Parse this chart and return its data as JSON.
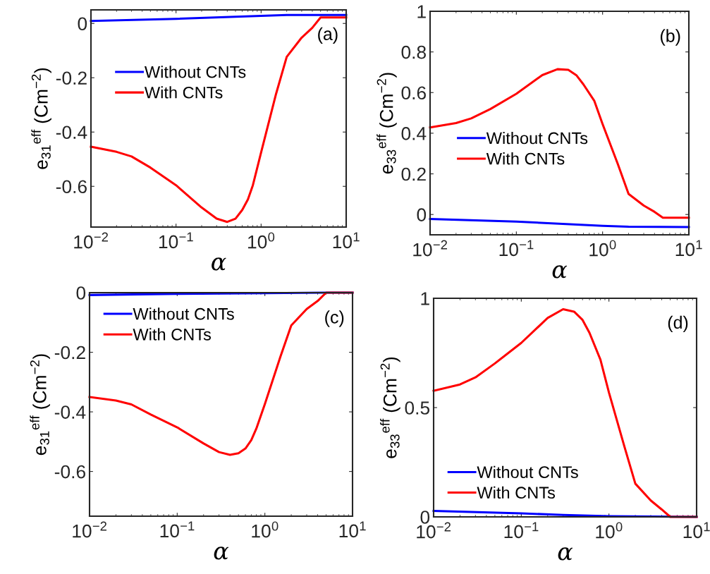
{
  "chart_data": [
    {
      "type": "line",
      "xlabel": "α",
      "ylabel": "e$_{31}$$^{eff}$ (Cm$^{−2}$)",
      "annotations": [
        "(a)"
      ],
      "log": "x",
      "legend": "center left",
      "grid": false,
      "xlim": [
        0.01,
        10
      ],
      "xticks": [
        {
          "value": 0.01,
          "label": "10$^{−2}$"
        },
        {
          "value": 0.1,
          "label": "10$^{−1}$"
        },
        {
          "value": 1,
          "label": "10$^{0}$"
        },
        {
          "value": 10,
          "label": "10$^{1}$"
        }
      ],
      "ylim": [
        -0.75,
        0.05
      ],
      "yticks": [
        {
          "value": -0.6,
          "label": "-0.6"
        },
        {
          "value": -0.4,
          "label": "-0.4"
        },
        {
          "value": -0.2,
          "label": "-0.2"
        },
        0
      ],
      "series": [
        {
          "name": "Without CNTs",
          "color": "#0000ff",
          "x": [
            0.01,
            0.1,
            1,
            2,
            10
          ],
          "values": [
            0.009,
            0.017,
            0.028,
            0.031,
            0.031
          ]
        },
        {
          "name": "With CNTs",
          "color": "#ff0000",
          "x": [
            0.01,
            0.02,
            0.03,
            0.05,
            0.1,
            0.2,
            0.3,
            0.4,
            0.5,
            0.6,
            0.7,
            0.8,
            1,
            1.5,
            2,
            3,
            4,
            5,
            10
          ],
          "values": [
            -0.454,
            -0.473,
            -0.49,
            -0.531,
            -0.596,
            -0.678,
            -0.719,
            -0.731,
            -0.719,
            -0.687,
            -0.648,
            -0.596,
            -0.475,
            -0.259,
            -0.123,
            -0.052,
            -0.016,
            0.022,
            0.022
          ]
        }
      ]
    },
    {
      "type": "line",
      "xlabel": "α",
      "ylabel": "e$_{33}$$^{eff}$ (Cm$^{−2}$)",
      "annotations": [
        "(b)"
      ],
      "log": "x",
      "legend": "center left",
      "grid": false,
      "xlim": [
        0.01,
        10
      ],
      "xticks": [
        {
          "value": 0.01,
          "label": "10$^{−2}$"
        },
        {
          "value": 0.1,
          "label": "10$^{−1}$"
        },
        {
          "value": 1,
          "label": "10$^{0}$"
        },
        {
          "value": 10,
          "label": "10$^{1}$"
        }
      ],
      "ylim": [
        -0.1,
        1
      ],
      "yticks": [
        0,
        0.2,
        0.4,
        0.6,
        0.8,
        1
      ],
      "series": [
        {
          "name": "Without CNTs",
          "color": "#0000ff",
          "x": [
            0.01,
            0.1,
            1,
            2,
            10
          ],
          "values": [
            -0.022,
            -0.035,
            -0.056,
            -0.06,
            -0.062
          ]
        },
        {
          "name": "With CNTs",
          "color": "#ff0000",
          "x": [
            0.01,
            0.02,
            0.03,
            0.05,
            0.1,
            0.2,
            0.3,
            0.4,
            0.5,
            0.6,
            0.8,
            1,
            1.5,
            2,
            3,
            4,
            5,
            10
          ],
          "values": [
            0.428,
            0.45,
            0.473,
            0.519,
            0.594,
            0.686,
            0.715,
            0.712,
            0.684,
            0.64,
            0.56,
            0.445,
            0.249,
            0.101,
            0.044,
            0.013,
            -0.016,
            -0.016
          ]
        }
      ]
    },
    {
      "type": "line",
      "xlabel": "α",
      "ylabel": "e$_{31}$$^{eff}$ (Cm$^{−2}$)",
      "annotations": [
        "(c)"
      ],
      "log": "x",
      "legend": "upper left",
      "grid": false,
      "xlim": [
        0.01,
        10
      ],
      "xticks": [
        {
          "value": 0.01,
          "label": "10$^{−2}$"
        },
        {
          "value": 0.1,
          "label": "10$^{−1}$"
        },
        {
          "value": 1,
          "label": "10$^{0}$"
        },
        {
          "value": 10,
          "label": "10$^{1}$"
        }
      ],
      "ylim": [
        -0.75,
        0
      ],
      "yticks": [
        {
          "value": -0.6,
          "label": "-0.6"
        },
        {
          "value": -0.4,
          "label": "-0.4"
        },
        {
          "value": -0.2,
          "label": "-0.2"
        },
        0
      ],
      "series": [
        {
          "name": "Without CNTs",
          "color": "#0000ff",
          "x": [
            0.01,
            0.1,
            1,
            5,
            10
          ],
          "values": [
            -0.008,
            -0.004,
            -0.002,
            0,
            0
          ]
        },
        {
          "name": "With CNTs",
          "color": "#ff0000",
          "x": [
            0.01,
            0.02,
            0.03,
            0.05,
            0.1,
            0.2,
            0.3,
            0.4,
            0.5,
            0.6,
            0.7,
            0.8,
            1,
            1.5,
            2,
            3,
            4,
            5,
            10
          ],
          "values": [
            -0.35,
            -0.362,
            -0.375,
            -0.409,
            -0.452,
            -0.506,
            -0.535,
            -0.544,
            -0.539,
            -0.523,
            -0.495,
            -0.456,
            -0.374,
            -0.216,
            -0.11,
            -0.055,
            -0.028,
            0,
            0
          ]
        }
      ]
    },
    {
      "type": "line",
      "xlabel": "α",
      "ylabel": "e$_{33}$$^{eff}$ (Cm$^{−2}$)",
      "annotations": [
        "(d)"
      ],
      "log": "x",
      "legend": "lower left",
      "grid": false,
      "xlim": [
        0.01,
        10
      ],
      "xticks": [
        {
          "value": 0.01,
          "label": "10$^{−2}$"
        },
        {
          "value": 0.1,
          "label": "10$^{−1}$"
        },
        {
          "value": 1,
          "label": "10$^{0}$"
        },
        {
          "value": 10,
          "label": "10$^{1}$"
        }
      ],
      "ylim": [
        0,
        1
      ],
      "yticks": [
        0,
        0.5,
        1
      ],
      "series": [
        {
          "name": "Without CNTs",
          "color": "#0000ff",
          "x": [
            0.01,
            0.1,
            0.3,
            1,
            10
          ],
          "values": [
            0.027,
            0.016,
            0.009,
            0.003,
            0
          ]
        },
        {
          "name": "With CNTs",
          "color": "#ff0000",
          "x": [
            0.01,
            0.02,
            0.03,
            0.05,
            0.1,
            0.2,
            0.3,
            0.4,
            0.5,
            0.6,
            0.8,
            1,
            1.5,
            2,
            3,
            4,
            5,
            10
          ],
          "values": [
            0.577,
            0.606,
            0.638,
            0.702,
            0.796,
            0.91,
            0.95,
            0.939,
            0.901,
            0.842,
            0.719,
            0.569,
            0.322,
            0.152,
            0.075,
            0.034,
            0,
            0
          ]
        }
      ]
    }
  ]
}
